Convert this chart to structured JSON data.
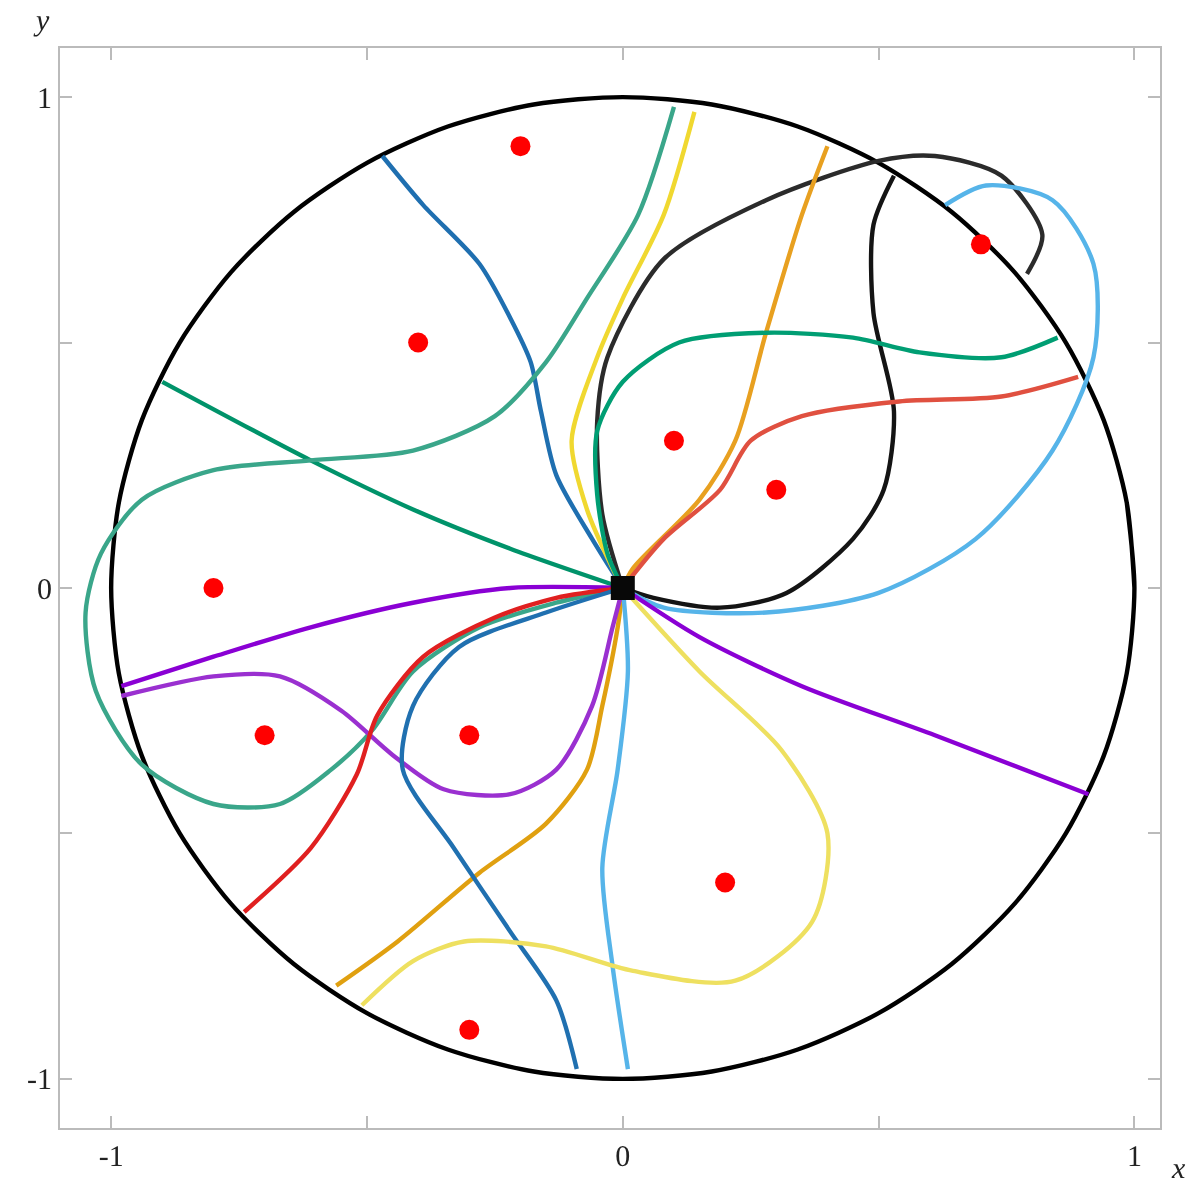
{
  "chart_data": {
    "type": "line",
    "xlabel": "x",
    "ylabel": "y",
    "xlim": [
      -1.1,
      1.05
    ],
    "ylim": [
      -1.1,
      1.1
    ],
    "xticks": [
      -1,
      {
        "value": -0.5,
        "label": null
      },
      0,
      {
        "value": 0.5,
        "label": null
      },
      1
    ],
    "yticks": [
      -1,
      {
        "value": -0.5,
        "label": null
      },
      0,
      {
        "value": 0.5,
        "label": null
      },
      1
    ],
    "marker": "none",
    "line_style": "solid",
    "series": [
      {
        "color": "#000000",
        "x": [
          1,
          0.985,
          0.94,
          0.866,
          0.766,
          0.643,
          0.5,
          0.342,
          0.174,
          0,
          -0.174,
          -0.342,
          -0.5,
          -0.643,
          -0.766,
          -0.866,
          -0.94,
          -0.985,
          -1,
          -0.985,
          -0.94,
          -0.866,
          -0.766,
          -0.643,
          -0.5,
          -0.342,
          -0.174,
          0,
          0.174,
          0.342,
          0.5,
          0.643,
          0.766,
          0.866,
          0.94,
          0.985,
          1,
          0.985
        ],
        "values": [
          0,
          0.174,
          0.342,
          0.5,
          0.643,
          0.766,
          0.866,
          0.94,
          0.985,
          1,
          0.985,
          0.94,
          0.866,
          0.766,
          0.643,
          0.5,
          0.342,
          0.174,
          0,
          -0.174,
          -0.342,
          -0.5,
          -0.643,
          -0.766,
          -0.866,
          -0.94,
          -0.985,
          -1,
          -0.985,
          -0.94,
          -0.866,
          -0.766,
          -0.643,
          -0.5,
          -0.342,
          -0.174,
          0,
          0.174
        ]
      },
      {
        "color": "#1f6fb0",
        "x": [
          -0.47,
          -0.39,
          -0.28,
          -0.22,
          -0.18,
          -0.16,
          -0.13,
          -0.06,
          0
        ],
        "values": [
          0.88,
          0.78,
          0.66,
          0.55,
          0.46,
          0.36,
          0.23,
          0.1,
          0
        ]
      },
      {
        "color": "#00936a",
        "x": [
          -0.9,
          -0.61,
          -0.41,
          -0.22,
          0
        ],
        "values": [
          0.42,
          0.26,
          0.16,
          0.08,
          0
        ]
      },
      {
        "color": "#3aa68a",
        "x": [
          0.1,
          0.03,
          -0.07,
          -0.15,
          -0.25,
          -0.41,
          -0.61,
          -0.8,
          -0.94,
          -1.02,
          -1.05,
          -1.03,
          -0.94,
          -0.8,
          -0.67,
          -0.57,
          -0.49,
          -0.41,
          -0.28,
          -0.13,
          0
        ],
        "values": [
          0.98,
          0.76,
          0.59,
          0.46,
          0.35,
          0.28,
          0.26,
          0.24,
          0.18,
          0.07,
          -0.05,
          -0.21,
          -0.36,
          -0.44,
          -0.44,
          -0.37,
          -0.29,
          -0.17,
          -0.08,
          -0.03,
          0
        ]
      },
      {
        "color": "#f0d830",
        "x": [
          0.14,
          0.08,
          0,
          -0.05,
          -0.1,
          -0.07,
          -0.02,
          0
        ],
        "values": [
          0.97,
          0.76,
          0.59,
          0.47,
          0.3,
          0.16,
          0.04,
          0
        ]
      },
      {
        "color": "#2b2b2b",
        "x": [
          0,
          -0.04,
          -0.05,
          -0.03,
          0.08,
          0.28,
          0.5,
          0.61,
          0.74,
          0.82,
          0.79
        ],
        "values": [
          0,
          0.15,
          0.34,
          0.47,
          0.67,
          0.79,
          0.87,
          0.88,
          0.84,
          0.72,
          0.64
        ]
      },
      {
        "color": "#141414",
        "x": [
          0.53,
          0.49,
          0.49,
          0.53,
          0.51,
          0.45,
          0.32,
          0.19,
          0.06,
          0
        ],
        "values": [
          0.84,
          0.74,
          0.56,
          0.36,
          0.2,
          0.1,
          -0.01,
          -0.04,
          -0.02,
          0
        ]
      },
      {
        "color": "#e8a020",
        "x": [
          0.4,
          0.35,
          0.28,
          0.22,
          0.15,
          0.02,
          0
        ],
        "values": [
          0.9,
          0.76,
          0.52,
          0.3,
          0.18,
          0.04,
          0
        ]
      },
      {
        "color": "#e0a010",
        "x": [
          -0.56,
          -0.44,
          -0.28,
          -0.15,
          -0.07,
          -0.04,
          -0.01,
          0
        ],
        "values": [
          -0.81,
          -0.72,
          -0.58,
          -0.48,
          -0.37,
          -0.24,
          -0.08,
          0
        ]
      },
      {
        "color": "#009e73",
        "x": [
          0.85,
          0.74,
          0.58,
          0.45,
          0.28,
          0.11,
          0,
          -0.05,
          -0.05,
          -0.03,
          0
        ],
        "values": [
          0.51,
          0.47,
          0.48,
          0.51,
          0.52,
          0.5,
          0.42,
          0.32,
          0.19,
          0.07,
          0
        ]
      },
      {
        "color": "#e05040",
        "x": [
          0.89,
          0.74,
          0.54,
          0.35,
          0.25,
          0.19,
          0.08,
          0
        ],
        "values": [
          0.43,
          0.39,
          0.38,
          0.35,
          0.3,
          0.2,
          0.1,
          0
        ]
      },
      {
        "color": "#56b4e9",
        "x": [
          0.63,
          0.71,
          0.84,
          0.92,
          0.92,
          0.84,
          0.69,
          0.5,
          0.28,
          0.08,
          0
        ],
        "values": [
          0.78,
          0.82,
          0.79,
          0.66,
          0.47,
          0.28,
          0.1,
          -0.01,
          -0.05,
          -0.04,
          0
        ]
      },
      {
        "color": "#56b4e9",
        "x": [
          0,
          0.01,
          -0.01,
          -0.04,
          -0.02,
          0.01
        ],
        "values": [
          0,
          -0.17,
          -0.37,
          -0.57,
          -0.77,
          -0.98
        ]
      },
      {
        "color": "#8a00d4",
        "x": [
          0,
          0.15,
          0.35,
          0.61,
          0.91
        ],
        "values": [
          0,
          -0.1,
          -0.2,
          -0.3,
          -0.42
        ]
      },
      {
        "color": "#8a00d4",
        "x": [
          -0.98,
          -0.8,
          -0.61,
          -0.41,
          -0.22,
          0
        ],
        "values": [
          -0.2,
          -0.14,
          -0.08,
          -0.03,
          0,
          0
        ]
      },
      {
        "color": "#9a30d0",
        "x": [
          -0.98,
          -0.8,
          -0.67,
          -0.55,
          -0.45,
          -0.35,
          -0.22,
          -0.13,
          -0.06,
          -0.02,
          0
        ],
        "values": [
          -0.22,
          -0.18,
          -0.18,
          -0.25,
          -0.34,
          -0.41,
          -0.42,
          -0.37,
          -0.24,
          -0.08,
          0
        ]
      },
      {
        "color": "#e02020",
        "x": [
          -0.74,
          -0.61,
          -0.52,
          -0.48,
          -0.39,
          -0.25,
          -0.13,
          0
        ],
        "values": [
          -0.66,
          -0.53,
          -0.38,
          -0.26,
          -0.14,
          -0.06,
          -0.02,
          0
        ]
      },
      {
        "color": "#2070b0",
        "x": [
          0,
          -0.15,
          -0.32,
          -0.41,
          -0.43,
          -0.33,
          -0.22,
          -0.13,
          -0.09
        ],
        "values": [
          0,
          -0.05,
          -0.12,
          -0.24,
          -0.37,
          -0.53,
          -0.7,
          -0.84,
          -0.98
        ]
      },
      {
        "color": "#eee060",
        "x": [
          0,
          0.15,
          0.31,
          0.4,
          0.37,
          0.22,
          0.02,
          -0.15,
          -0.31,
          -0.41,
          -0.51
        ],
        "values": [
          0,
          -0.17,
          -0.33,
          -0.5,
          -0.68,
          -0.8,
          -0.78,
          -0.73,
          -0.72,
          -0.76,
          -0.85
        ]
      },
      {
        "type": "scatter",
        "marker": "circle",
        "color": "#ff0000",
        "x": [
          -0.2,
          -0.4,
          -0.8,
          -0.7,
          -0.3,
          0.1,
          0.3,
          0.7,
          0.2,
          -0.3
        ],
        "values": [
          0.9,
          0.5,
          0,
          -0.3,
          -0.3,
          0.3,
          0.2,
          0.7,
          -0.6,
          -0.9
        ]
      },
      {
        "type": "scatter",
        "marker": "square",
        "color": "#080808",
        "x": [
          0
        ],
        "values": [
          0
        ]
      }
    ]
  }
}
